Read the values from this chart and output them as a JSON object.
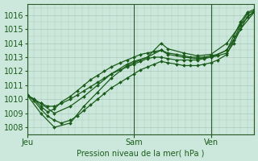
{
  "bg_color": "#cce8dc",
  "grid_color": "#aacaba",
  "line_color": "#1a5c1a",
  "marker_color": "#1a5c1a",
  "xlabel": "Pression niveau de la mer( hPa )",
  "xlabel_color": "#1a5c1a",
  "tick_color": "#1a5c1a",
  "vline_color": "#2a5a2a",
  "ylim": [
    1007.5,
    1016.8
  ],
  "yticks": [
    1008,
    1009,
    1010,
    1011,
    1012,
    1013,
    1014,
    1015,
    1016
  ],
  "xtick_labels": [
    "Jeu",
    "Sam",
    "Ven"
  ],
  "vlines_x": [
    0.0,
    0.47,
    0.81
  ],
  "lines": [
    {
      "x": [
        0.0,
        0.03,
        0.06,
        0.09,
        0.12,
        0.15,
        0.19,
        0.22,
        0.25,
        0.28,
        0.31,
        0.34,
        0.37,
        0.41,
        0.44,
        0.47,
        0.5,
        0.53,
        0.56,
        0.59,
        0.62,
        0.66,
        0.69,
        0.72,
        0.75,
        0.78,
        0.81,
        0.84,
        0.88,
        0.91,
        0.94,
        0.97,
        1.0
      ],
      "y": [
        1010.3,
        1010.0,
        1009.5,
        1009.1,
        1009.3,
        1009.8,
        1010.2,
        1010.6,
        1011.0,
        1011.4,
        1011.7,
        1012.0,
        1012.3,
        1012.6,
        1012.8,
        1013.0,
        1013.2,
        1013.3,
        1013.4,
        1013.5,
        1013.3,
        1013.2,
        1013.1,
        1013.0,
        1013.0,
        1013.0,
        1013.1,
        1013.2,
        1013.5,
        1014.5,
        1015.5,
        1016.2,
        1016.4
      ]
    },
    {
      "x": [
        0.0,
        0.03,
        0.06,
        0.09,
        0.12,
        0.15,
        0.19,
        0.22,
        0.25,
        0.28,
        0.31,
        0.34,
        0.37,
        0.41,
        0.44,
        0.47,
        0.5,
        0.53,
        0.56,
        0.59,
        0.62,
        0.66,
        0.69,
        0.72,
        0.75,
        0.78,
        0.81,
        0.84,
        0.88,
        0.91,
        0.94,
        0.97,
        1.0
      ],
      "y": [
        1010.3,
        1009.9,
        1009.3,
        1008.8,
        1008.5,
        1008.3,
        1008.5,
        1008.8,
        1009.2,
        1009.6,
        1010.0,
        1010.4,
        1010.8,
        1011.2,
        1011.5,
        1011.8,
        1012.1,
        1012.3,
        1012.5,
        1012.7,
        1012.6,
        1012.5,
        1012.4,
        1012.4,
        1012.4,
        1012.5,
        1012.6,
        1012.8,
        1013.2,
        1014.2,
        1015.3,
        1016.1,
        1016.3
      ]
    },
    {
      "x": [
        0.0,
        0.03,
        0.06,
        0.09,
        0.12,
        0.15,
        0.19,
        0.22,
        0.25,
        0.28,
        0.31,
        0.34,
        0.37,
        0.41,
        0.44,
        0.47,
        0.5,
        0.53,
        0.56,
        0.59,
        0.62,
        0.66,
        0.69,
        0.72,
        0.75,
        0.78,
        0.81,
        0.84,
        0.88,
        0.91,
        0.94,
        0.97,
        1.0
      ],
      "y": [
        1010.3,
        1010.0,
        1009.7,
        1009.5,
        1009.5,
        1009.7,
        1010.0,
        1010.3,
        1010.6,
        1010.9,
        1011.2,
        1011.5,
        1011.8,
        1012.1,
        1012.3,
        1012.5,
        1012.7,
        1012.9,
        1013.0,
        1013.0,
        1012.9,
        1012.8,
        1012.8,
        1012.8,
        1012.8,
        1012.9,
        1013.0,
        1013.1,
        1013.3,
        1014.0,
        1015.0,
        1015.9,
        1016.2
      ]
    },
    {
      "x": [
        0.0,
        0.06,
        0.12,
        0.19,
        0.25,
        0.31,
        0.37,
        0.44,
        0.47,
        0.53,
        0.59,
        0.62,
        0.69,
        0.75,
        0.81,
        0.88,
        0.94,
        1.0
      ],
      "y": [
        1010.3,
        1009.0,
        1008.0,
        1008.3,
        1009.5,
        1010.5,
        1011.5,
        1012.4,
        1012.6,
        1013.0,
        1014.0,
        1013.6,
        1013.3,
        1013.1,
        1013.2,
        1014.0,
        1015.3,
        1016.3
      ]
    },
    {
      "x": [
        0.0,
        0.06,
        0.12,
        0.19,
        0.25,
        0.31,
        0.37,
        0.44,
        0.47,
        0.53,
        0.59,
        0.62,
        0.69,
        0.75,
        0.81,
        0.88,
        0.94,
        1.0
      ],
      "y": [
        1010.3,
        1009.7,
        1009.0,
        1009.5,
        1010.2,
        1011.0,
        1011.8,
        1012.5,
        1012.7,
        1013.0,
        1013.5,
        1013.2,
        1013.0,
        1012.9,
        1013.0,
        1013.5,
        1015.0,
        1016.2
      ]
    }
  ]
}
